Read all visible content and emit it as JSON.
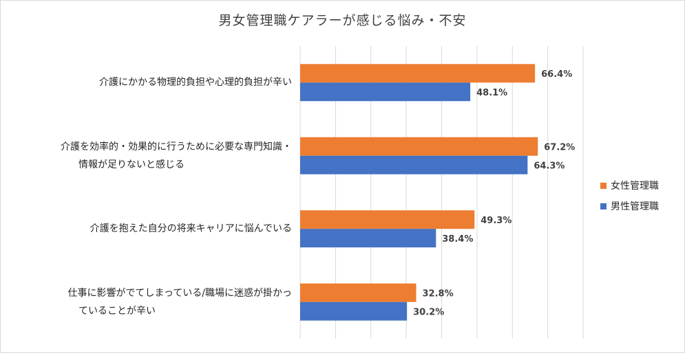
{
  "chart_data": {
    "type": "bar",
    "orientation": "horizontal",
    "title": "男女管理職ケアラーが感じる悩み・不安",
    "categories": [
      [
        "介護にかかる物理的負担や心理的負担が辛い"
      ],
      [
        "介護を効率的・効果的に行うために必要な専門知識・",
        "情報が足りないと感じる"
      ],
      [
        "介護を抱えた自分の将来キャリアに悩んでいる"
      ],
      [
        "仕事に影響がでてしまっている/職場に迷惑が掛かっ",
        "ていることが辛い"
      ]
    ],
    "series": [
      {
        "name": "女性管理職",
        "color": "#ED7D31",
        "values": [
          66.4,
          67.2,
          49.3,
          32.8
        ],
        "labels": [
          "66.4%",
          "67.2%",
          "49.3%",
          "32.8%"
        ]
      },
      {
        "name": "男性管理職",
        "color": "#4472C4",
        "values": [
          48.1,
          64.3,
          38.4,
          30.2
        ],
        "labels": [
          "48.1%",
          "64.3%",
          "38.4%",
          "30.2%"
        ]
      }
    ],
    "xlim": [
      0,
      80
    ],
    "grid": true,
    "legend_position": "right"
  }
}
